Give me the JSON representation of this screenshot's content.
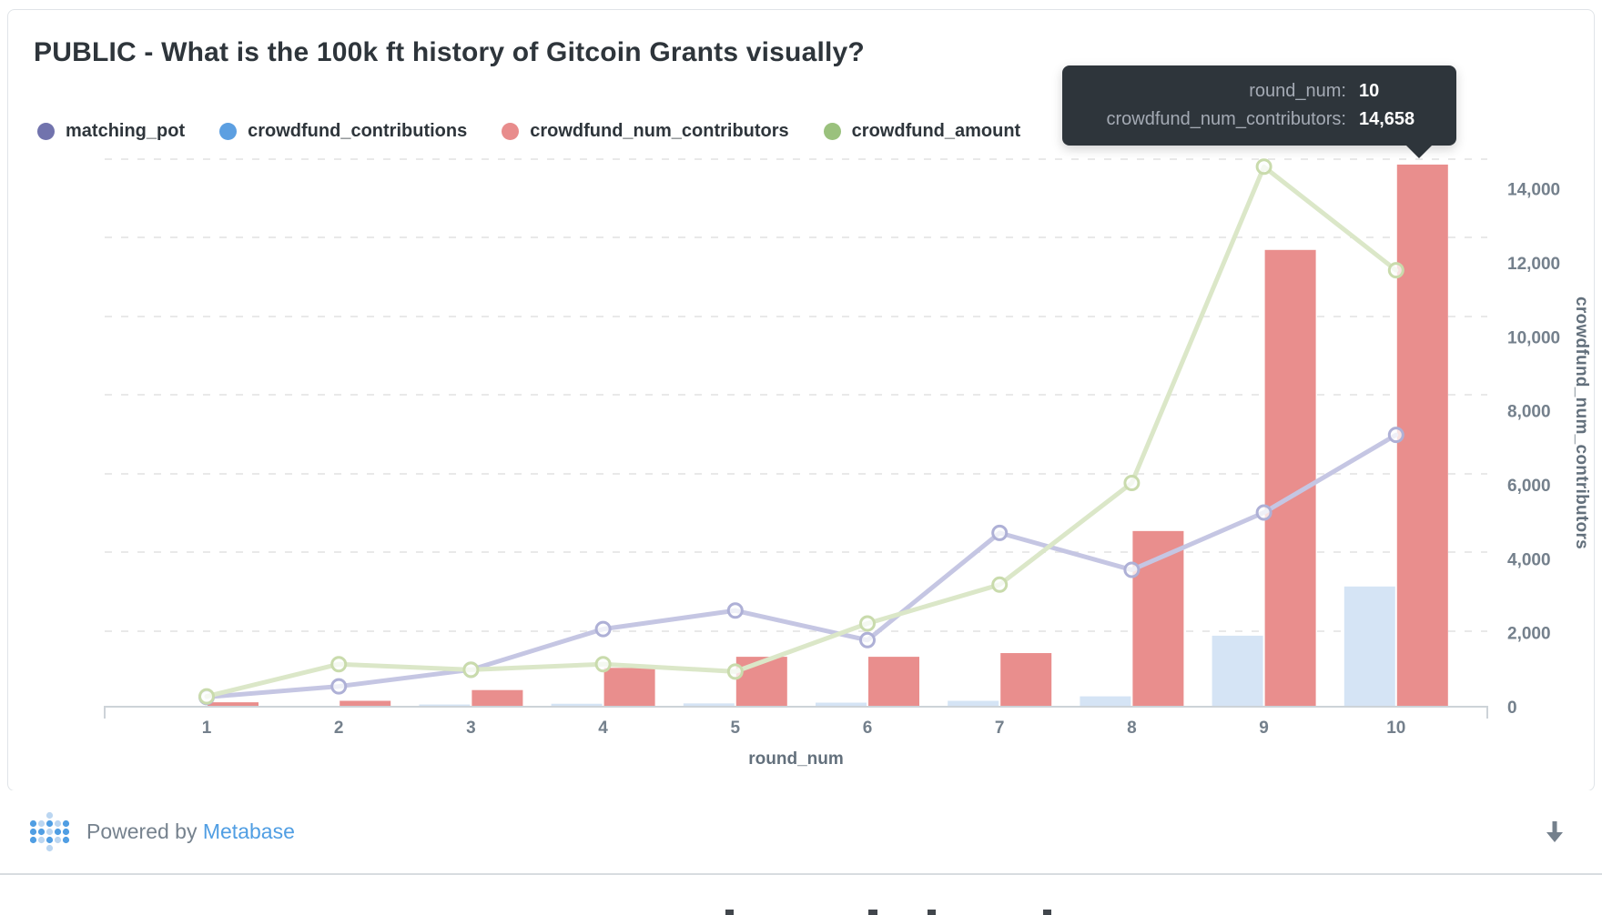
{
  "card": {
    "title": "PUBLIC - What is the 100k ft history of Gitcoin Grants visually?"
  },
  "tooltip": {
    "rows": [
      {
        "label": "round_num:",
        "value": "10"
      },
      {
        "label": "crowdfund_num_contributors:",
        "value": "14,658"
      }
    ]
  },
  "chart_data": {
    "type": "combo",
    "title": "PUBLIC - What is the 100k ft history of Gitcoin Grants visually?",
    "x": [
      1,
      2,
      3,
      4,
      5,
      6,
      7,
      8,
      9,
      10
    ],
    "x_axis": {
      "title": "round_num"
    },
    "y_axis_right": {
      "title": "crowdfund_num_contributors",
      "range": [
        0,
        14658
      ],
      "ticks": [
        {
          "value": 0,
          "label": "0"
        },
        {
          "value": 2000,
          "label": "2,000"
        },
        {
          "value": 4000,
          "label": "4,000"
        },
        {
          "value": 6000,
          "label": "6,000"
        },
        {
          "value": 8000,
          "label": "8,000"
        },
        {
          "value": 10000,
          "label": "10,000"
        },
        {
          "value": 12000,
          "label": "12,000"
        },
        {
          "value": 14000,
          "label": "14,000"
        }
      ]
    },
    "grid": "horizontal-dashed",
    "legend_position": "top-left",
    "series": [
      {
        "name": "matching_pot",
        "type": "line",
        "legend_color": "#7173AD",
        "line_color": "#C5C6E3",
        "marker_color": "#AEB0D6",
        "values": [
          260,
          550,
          1000,
          2100,
          2600,
          1800,
          4700,
          3700,
          5250,
          7350
        ]
      },
      {
        "name": "crowdfund_contributions",
        "type": "bar",
        "legend_color": "#5C9FE1",
        "fill": "#D5E4F5",
        "values": [
          10,
          15,
          60,
          80,
          90,
          110,
          160,
          280,
          1920,
          3250
        ]
      },
      {
        "name": "crowdfund_num_contributors",
        "type": "bar",
        "legend_color": "#E88C8C",
        "fill": "#E98E8D",
        "values": [
          120,
          160,
          450,
          1050,
          1350,
          1350,
          1450,
          4750,
          12350,
          14658
        ]
      },
      {
        "name": "crowdfund_amount",
        "type": "line",
        "legend_color": "#9AC17D",
        "line_color": "#DBE7C8",
        "marker_color": "#C9DBAC",
        "values": [
          280,
          1150,
          1000,
          1150,
          950,
          2250,
          3300,
          6050,
          14600,
          11800
        ]
      }
    ],
    "highlighted_point": {
      "series": "crowdfund_num_contributors",
      "round_num": 10,
      "value": 14658
    }
  },
  "footer": {
    "powered_by": "Powered by",
    "brand": "Metabase"
  }
}
